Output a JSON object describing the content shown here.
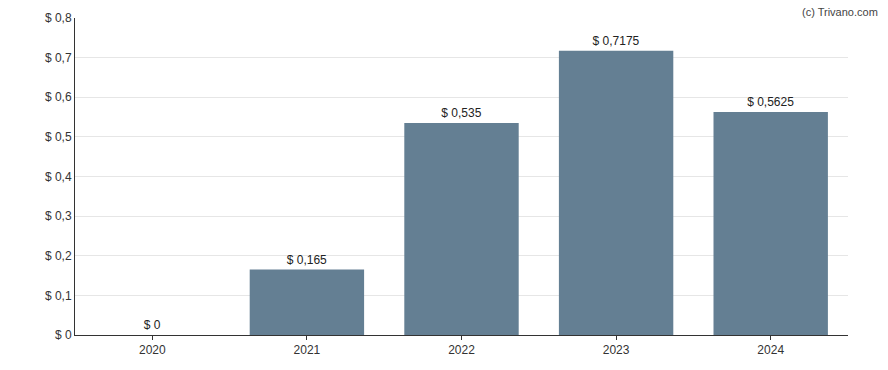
{
  "chart_data": {
    "type": "bar",
    "categories": [
      "2020",
      "2021",
      "2022",
      "2023",
      "2024"
    ],
    "values": [
      0,
      0.165,
      0.535,
      0.7175,
      0.5625
    ],
    "value_labels": [
      "$ 0",
      "$ 0,165",
      "$ 0,535",
      "$ 0,7175",
      "$ 0,5625"
    ],
    "data_labels": true,
    "color": "#647f93",
    "ylim": [
      0,
      0.8
    ],
    "yticks": [
      {
        "value": 0,
        "label": "$ 0"
      },
      {
        "value": 0.1,
        "label": "$ 0,1"
      },
      {
        "value": 0.2,
        "label": "$ 0,2"
      },
      {
        "value": 0.3,
        "label": "$ 0,3"
      },
      {
        "value": 0.4,
        "label": "$ 0,4"
      },
      {
        "value": 0.5,
        "label": "$ 0,5"
      },
      {
        "value": 0.6,
        "label": "$ 0,6"
      },
      {
        "value": 0.7,
        "label": "$ 0,7"
      },
      {
        "value": 0.8,
        "label": "$ 0,8"
      }
    ],
    "grid": true,
    "annotations": [
      "(c) Trivano.com"
    ]
  }
}
